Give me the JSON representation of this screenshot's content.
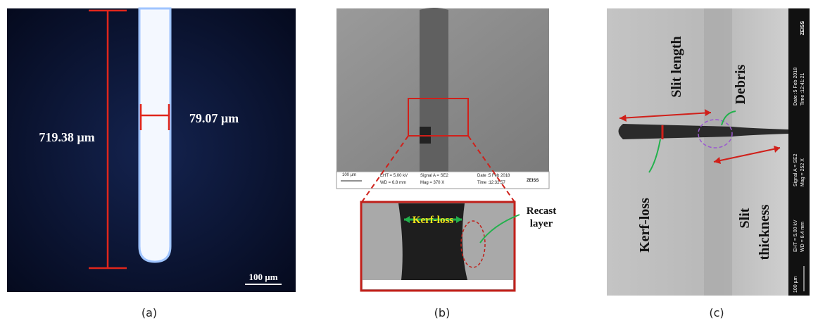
{
  "panels": [
    {
      "caption": "(a)",
      "length_label": "719.38 µm",
      "width_label": "79.07 µm",
      "scale_bar": "100 µm"
    },
    {
      "caption": "(b)",
      "scale_bar": "100 µm",
      "info": [
        "EHT = 5.00 kV",
        "WD = 6.8 mm",
        "Signal A = SE2",
        "Mag = 370 X",
        "Date :5 Feb 2018",
        "Time :12:32:57"
      ],
      "brand": "ZEISS",
      "kerf_label": "Kerf-loss",
      "recast_label": [
        "Recast",
        "layer"
      ]
    },
    {
      "caption": "(c)",
      "slit_length": "Slit length",
      "debris": "Debris",
      "kerf_label": "Kerf-loss",
      "slit_thickness": [
        "Slit",
        "thickness"
      ],
      "info": [
        "Date :5 Feb 2018",
        "Time :12:41:21",
        "Signal A = SE2",
        "Mag = 252 X",
        "EHT = 5.00 kV",
        "WD = 8.4 mm"
      ],
      "scale_bar": "100 µm",
      "brand": "ZEISS"
    }
  ]
}
